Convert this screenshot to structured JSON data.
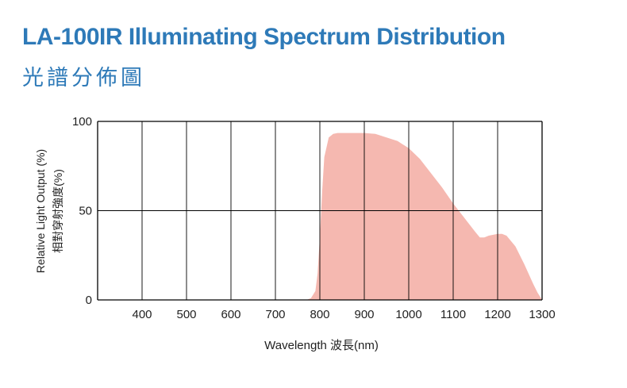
{
  "title": "LA-100IR Illuminating Spectrum Distribution",
  "subtitle": "光譜分佈圖",
  "chart_data": {
    "type": "area",
    "title": "LA-100IR Illuminating Spectrum Distribution",
    "subtitle": "光譜分佈圖",
    "xlabel": "Wavelength 波長(nm)",
    "ylabel": "Relative Light Output (%)",
    "ylabel2": "相對穿射強度(%)",
    "xlim": [
      300,
      1300
    ],
    "ylim": [
      0,
      100
    ],
    "xticks": [
      400,
      500,
      600,
      700,
      800,
      900,
      1000,
      1100,
      1200,
      1300
    ],
    "yticks": [
      0,
      50,
      100
    ],
    "grid": true,
    "fill_color": "#f5b8b0",
    "series": [
      {
        "x": [
          770,
          780,
          790,
          795,
          800,
          805,
          810,
          820,
          830,
          840,
          850,
          875,
          900,
          925,
          950,
          975,
          1000,
          1025,
          1050,
          1075,
          1100,
          1125,
          1150,
          1160,
          1170,
          1180,
          1200,
          1210,
          1220,
          1240,
          1260,
          1280,
          1290,
          1300
        ],
        "y": [
          0,
          1,
          5,
          15,
          35,
          60,
          80,
          91,
          93,
          93.5,
          93.5,
          93.5,
          93.5,
          93,
          91,
          89,
          85,
          79,
          71,
          63,
          54,
          46,
          38,
          35,
          35,
          36,
          37,
          37,
          36,
          30,
          20,
          9,
          4,
          0
        ]
      }
    ]
  }
}
